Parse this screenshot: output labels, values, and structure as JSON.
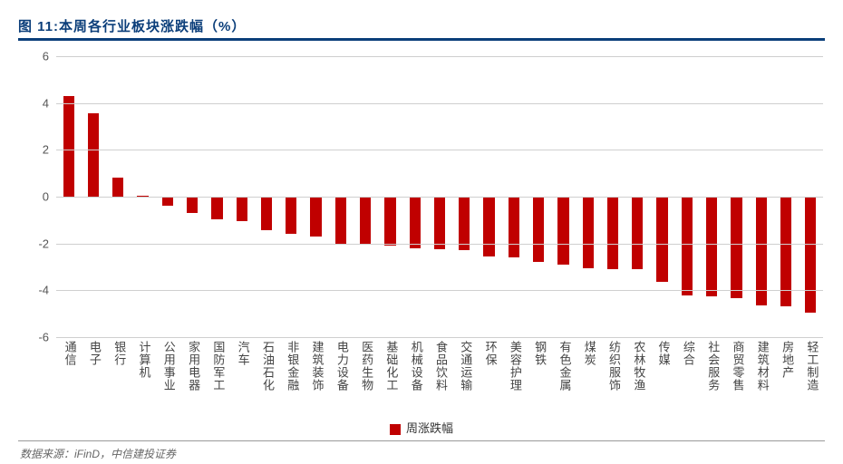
{
  "title": "图 11:本周各行业板块涨跌幅（%）",
  "source": "数据来源：iFinD，中信建投证券",
  "chart": {
    "type": "bar",
    "legend_label": "周涨跌幅",
    "bar_color": "#c00000",
    "grid_color": "#cfcfcf",
    "background_color": "#ffffff",
    "title_color": "#0b3e7a",
    "label_color": "#444444",
    "bar_width_ratio": 0.45,
    "ylim": [
      -6,
      6
    ],
    "ytick_step": 2,
    "yticks": [
      -6,
      -4,
      -2,
      0,
      2,
      4,
      6
    ],
    "categories": [
      "通信",
      "电子",
      "银行",
      "计算机",
      "公用事业",
      "家用电器",
      "国防军工",
      "汽车",
      "石油石化",
      "非银金融",
      "建筑装饰",
      "电力设备",
      "医药生物",
      "基础化工",
      "机械设备",
      "食品饮料",
      "交通运输",
      "环保",
      "美容护理",
      "钢铁",
      "有色金属",
      "煤炭",
      "纺织服饰",
      "农林牧渔",
      "传媒",
      "综合",
      "社会服务",
      "商贸零售",
      "建筑材料",
      "房地产",
      "轻工制造"
    ],
    "values": [
      4.3,
      3.55,
      0.8,
      0.05,
      -0.4,
      -0.7,
      -0.95,
      -1.05,
      -1.45,
      -1.6,
      -1.7,
      -2.0,
      -2.05,
      -2.1,
      -2.2,
      -2.25,
      -2.3,
      -2.55,
      -2.6,
      -2.8,
      -2.9,
      -3.05,
      -3.1,
      -3.1,
      -3.65,
      -4.2,
      -4.25,
      -4.35,
      -4.65,
      -4.7,
      -4.95
    ]
  }
}
